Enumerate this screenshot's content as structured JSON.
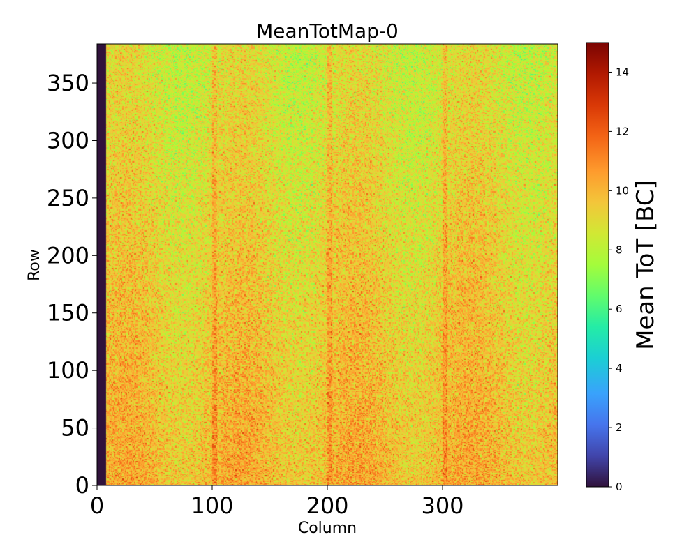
{
  "chart_data": {
    "type": "heatmap",
    "title": "MeanTotMap-0",
    "xlabel": "Column",
    "ylabel": "Row",
    "x_range": [
      0,
      400
    ],
    "y_range": [
      0,
      384
    ],
    "x_ticks": [
      0,
      100,
      200,
      300
    ],
    "y_ticks": [
      0,
      50,
      100,
      150,
      200,
      250,
      300,
      350
    ],
    "colorbar": {
      "label": "Mean ToT [BC]",
      "range": [
        0,
        15
      ],
      "ticks": [
        0,
        2,
        4,
        6,
        8,
        10,
        12,
        14
      ],
      "colormap": "turbo"
    },
    "zero_columns": [
      0,
      8
    ],
    "typical_value_range": [
      6,
      14
    ],
    "dominant_value": 10,
    "colors": {
      "zero_value": "#30123b",
      "low_value": "#4145ab",
      "mid_value": "#a4fc3c",
      "high_value": "#fb8022",
      "max_value": "#7a0403"
    }
  }
}
